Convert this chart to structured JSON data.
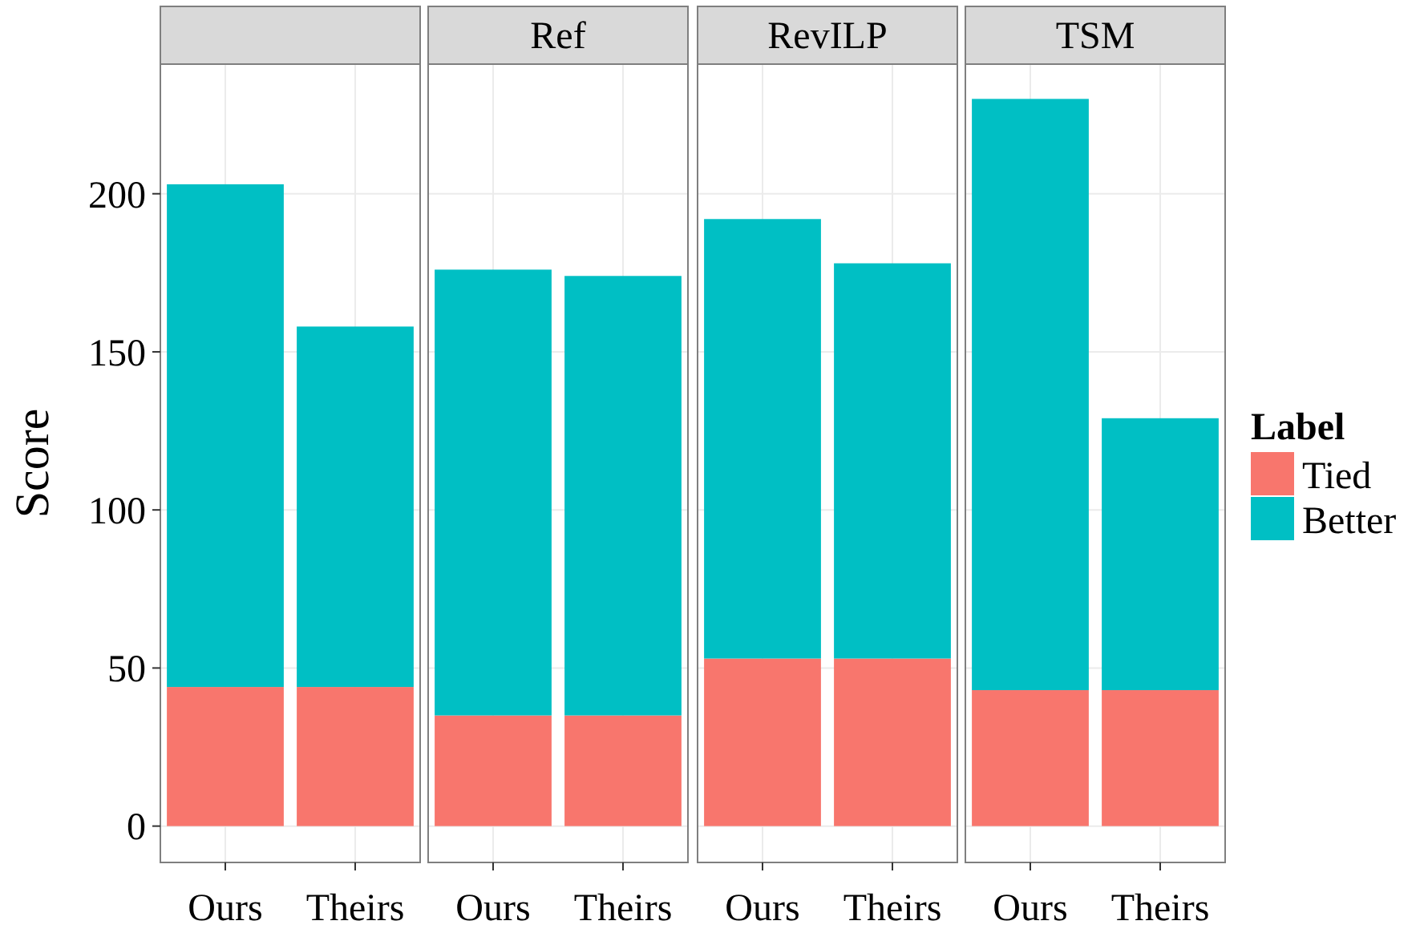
{
  "chart_data": [
    {
      "type": "bar",
      "title": null,
      "ylabel": "Score",
      "categories": [
        "Ours",
        "Theirs"
      ],
      "stacked": true,
      "ylim": [
        -11.5,
        241
      ],
      "yticks": [
        0,
        50,
        100,
        150,
        200
      ],
      "grid": true,
      "series": [
        {
          "color": "#f8766d",
          "values": [
            44,
            44
          ]
        },
        {
          "color": "#00bfc4",
          "values": [
            159,
            114
          ]
        }
      ]
    },
    {
      "type": "bar",
      "title": "Ref",
      "categories": [
        "Ours",
        "Theirs"
      ],
      "stacked": true,
      "ylim": [
        -11.5,
        241
      ],
      "yticks": [
        0,
        50,
        100,
        150,
        200
      ],
      "grid": true,
      "tick_labels": "x",
      "series": [
        {
          "color": "#f8766d",
          "values": [
            35,
            35
          ]
        },
        {
          "color": "#00bfc4",
          "values": [
            141,
            139
          ]
        }
      ]
    },
    {
      "type": "bar",
      "title": "RevILP",
      "categories": [
        "Ours",
        "Theirs"
      ],
      "stacked": true,
      "ylim": [
        -11.5,
        241
      ],
      "yticks": [
        0,
        50,
        100,
        150,
        200
      ],
      "grid": true,
      "tick_labels": "x",
      "series": [
        {
          "color": "#f8766d",
          "values": [
            53,
            53
          ]
        },
        {
          "color": "#00bfc4",
          "values": [
            139,
            125
          ]
        }
      ]
    },
    {
      "type": "bar",
      "title": "TSM",
      "categories": [
        "Ours",
        "Theirs"
      ],
      "stacked": true,
      "ylim": [
        -11.5,
        241
      ],
      "yticks": [
        0,
        50,
        100,
        150,
        200
      ],
      "grid": true,
      "tick_labels": "x",
      "legend": "right",
      "legend_title": "Label",
      "series": [
        {
          "name": "Tied",
          "color": "#f8766d",
          "values": [
            43,
            43
          ]
        },
        {
          "name": "Better",
          "color": "#00bfc4",
          "values": [
            187,
            86
          ]
        }
      ]
    }
  ]
}
